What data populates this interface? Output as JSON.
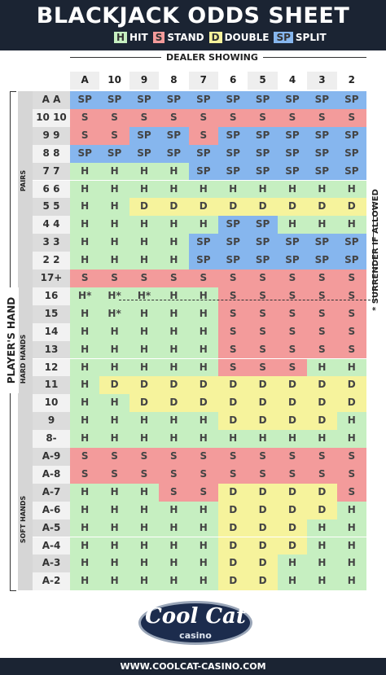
{
  "header": {
    "title": "BLACKJACK ODDS SHEET",
    "legend": [
      {
        "key": "H",
        "label": "HIT",
        "color": "#c6efc1"
      },
      {
        "key": "S",
        "label": "STAND",
        "color": "#f39b9b"
      },
      {
        "key": "D",
        "label": "DOUBLE",
        "color": "#f6f39c"
      },
      {
        "key": "SP",
        "label": "SPLIT",
        "color": "#86b6ee"
      }
    ]
  },
  "table": {
    "dealer_label": "DEALER SHOWING",
    "player_label": "PLAYER'S HAND",
    "columns": [
      "A",
      "10",
      "9",
      "8",
      "7",
      "6",
      "5",
      "4",
      "3",
      "2"
    ],
    "note": "* SURRENDER IF ALLOWED",
    "groups": [
      {
        "label": "PAIRS",
        "rows": [
          {
            "label": "A A",
            "cells": [
              "SP",
              "SP",
              "SP",
              "SP",
              "SP",
              "SP",
              "SP",
              "SP",
              "SP",
              "SP"
            ]
          },
          {
            "label": "10 10",
            "cells": [
              "S",
              "S",
              "S",
              "S",
              "S",
              "S",
              "S",
              "S",
              "S",
              "S"
            ]
          },
          {
            "label": "9 9",
            "cells": [
              "S",
              "S",
              "SP",
              "SP",
              "S",
              "SP",
              "SP",
              "SP",
              "SP",
              "SP"
            ]
          },
          {
            "label": "8 8",
            "cells": [
              "SP",
              "SP",
              "SP",
              "SP",
              "SP",
              "SP",
              "SP",
              "SP",
              "SP",
              "SP"
            ]
          },
          {
            "label": "7 7",
            "cells": [
              "H",
              "H",
              "H",
              "H",
              "SP",
              "SP",
              "SP",
              "SP",
              "SP",
              "SP"
            ]
          },
          {
            "label": "6 6",
            "cells": [
              "H",
              "H",
              "H",
              "H",
              "H",
              "H",
              "H",
              "H",
              "H",
              "H"
            ]
          },
          {
            "label": "5 5",
            "cells": [
              "H",
              "H",
              "D",
              "D",
              "D",
              "D",
              "D",
              "D",
              "D",
              "D"
            ]
          },
          {
            "label": "4 4",
            "cells": [
              "H",
              "H",
              "H",
              "H",
              "H",
              "SP",
              "SP",
              "H",
              "H",
              "H"
            ]
          },
          {
            "label": "3 3",
            "cells": [
              "H",
              "H",
              "H",
              "H",
              "SP",
              "SP",
              "SP",
              "SP",
              "SP",
              "SP"
            ]
          },
          {
            "label": "2 2",
            "cells": [
              "H",
              "H",
              "H",
              "H",
              "SP",
              "SP",
              "SP",
              "SP",
              "SP",
              "SP"
            ]
          }
        ]
      },
      {
        "label": "HARD HANDS",
        "rows": [
          {
            "label": "17+",
            "cells": [
              "S",
              "S",
              "S",
              "S",
              "S",
              "S",
              "S",
              "S",
              "S",
              "S"
            ]
          },
          {
            "label": "16",
            "cells": [
              "H*",
              "H*",
              "H*",
              "H",
              "H",
              "S",
              "S",
              "S",
              "S",
              "S"
            ]
          },
          {
            "label": "15",
            "cells": [
              "H",
              "H*",
              "H",
              "H",
              "H",
              "S",
              "S",
              "S",
              "S",
              "S"
            ]
          },
          {
            "label": "14",
            "cells": [
              "H",
              "H",
              "H",
              "H",
              "H",
              "S",
              "S",
              "S",
              "S",
              "S"
            ]
          },
          {
            "label": "13",
            "cells": [
              "H",
              "H",
              "H",
              "H",
              "H",
              "S",
              "S",
              "S",
              "S",
              "S"
            ]
          },
          {
            "label": "12",
            "cells": [
              "H",
              "H",
              "H",
              "H",
              "H",
              "S",
              "S",
              "S",
              "H",
              "H"
            ]
          },
          {
            "label": "11",
            "cells": [
              "H",
              "D",
              "D",
              "D",
              "D",
              "D",
              "D",
              "D",
              "D",
              "D"
            ]
          },
          {
            "label": "10",
            "cells": [
              "H",
              "H",
              "D",
              "D",
              "D",
              "D",
              "D",
              "D",
              "D",
              "D"
            ]
          },
          {
            "label": "9",
            "cells": [
              "H",
              "H",
              "H",
              "H",
              "H",
              "D",
              "D",
              "D",
              "D",
              "H"
            ]
          },
          {
            "label": "8-",
            "cells": [
              "H",
              "H",
              "H",
              "H",
              "H",
              "H",
              "H",
              "H",
              "H",
              "H"
            ]
          }
        ]
      },
      {
        "label": "SOFT HANDS",
        "rows": [
          {
            "label": "A-9",
            "cells": [
              "S",
              "S",
              "S",
              "S",
              "S",
              "S",
              "S",
              "S",
              "S",
              "S"
            ]
          },
          {
            "label": "A-8",
            "cells": [
              "S",
              "S",
              "S",
              "S",
              "S",
              "S",
              "S",
              "S",
              "S",
              "S"
            ]
          },
          {
            "label": "A-7",
            "cells": [
              "H",
              "H",
              "H",
              "S",
              "S",
              "D",
              "D",
              "D",
              "D",
              "S"
            ]
          },
          {
            "label": "A-6",
            "cells": [
              "H",
              "H",
              "H",
              "H",
              "H",
              "D",
              "D",
              "D",
              "D",
              "H"
            ]
          },
          {
            "label": "A-5",
            "cells": [
              "H",
              "H",
              "H",
              "H",
              "H",
              "D",
              "D",
              "D",
              "H",
              "H"
            ]
          },
          {
            "label": "A-4",
            "cells": [
              "H",
              "H",
              "H",
              "H",
              "H",
              "D",
              "D",
              "D",
              "H",
              "H"
            ]
          },
          {
            "label": "A-3",
            "cells": [
              "H",
              "H",
              "H",
              "H",
              "H",
              "D",
              "D",
              "H",
              "H",
              "H"
            ]
          },
          {
            "label": "A-2",
            "cells": [
              "H",
              "H",
              "H",
              "H",
              "H",
              "D",
              "D",
              "H",
              "H",
              "H"
            ]
          }
        ]
      }
    ]
  },
  "footer": {
    "logo": "Cool Cat",
    "logo_sub": "casino",
    "url": "WWW.COOLCAT-CASINO.COM"
  }
}
